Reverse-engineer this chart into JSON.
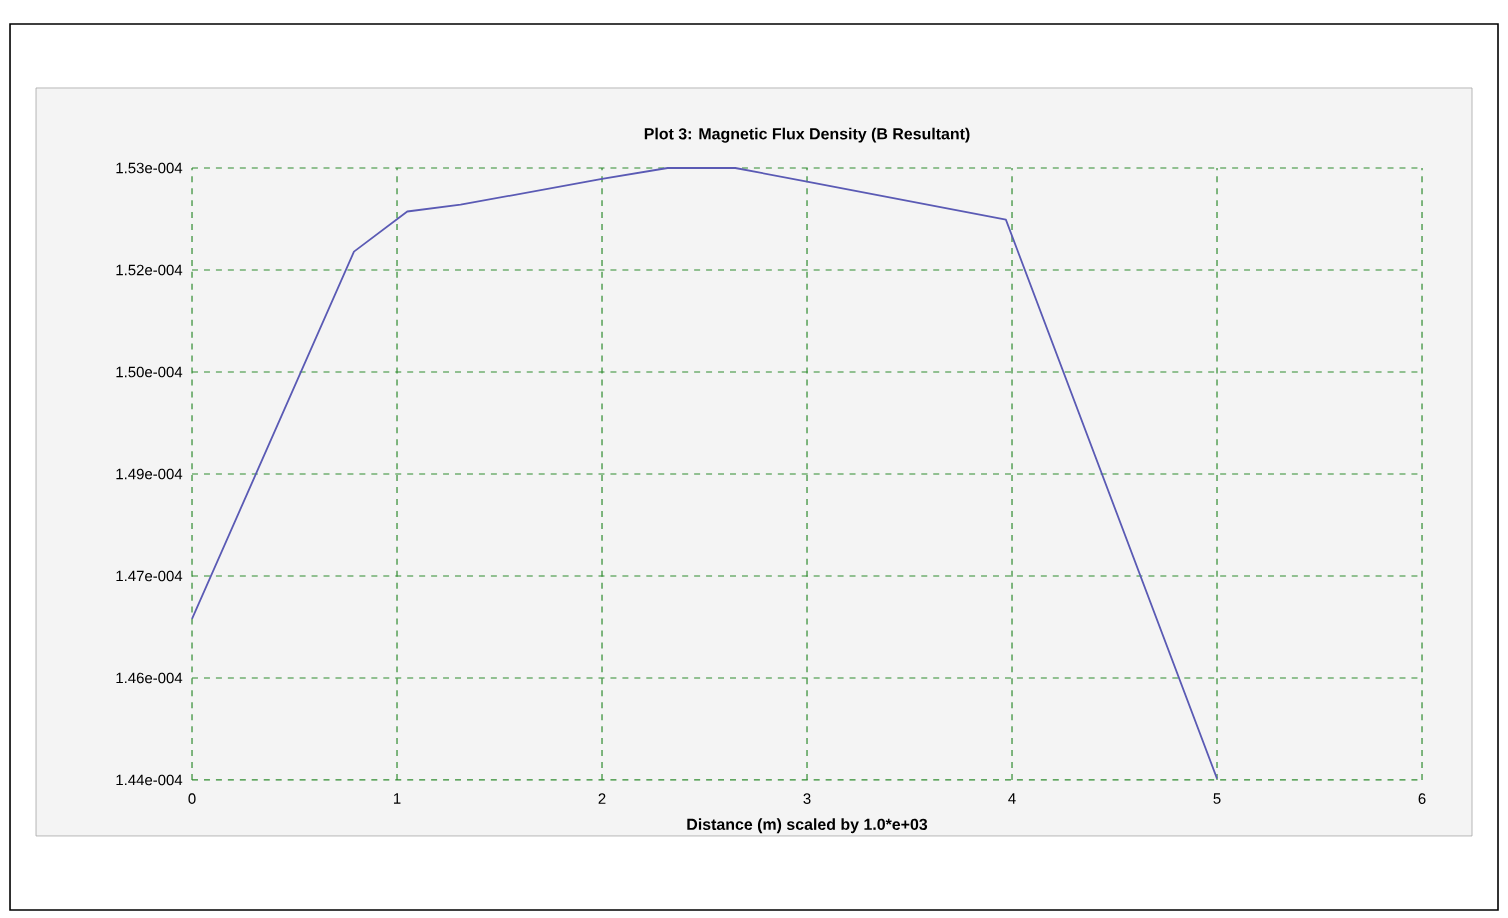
{
  "chart_data": {
    "type": "line",
    "title": "Plot 3:  Magnetic Flux Density (B Resultant)",
    "xlabel": "Distance (m) scaled by 1.0*e+03",
    "x": [
      0,
      0.79,
      1.05,
      1.31,
      2,
      2.32,
      2.65,
      3,
      3.97,
      5
    ],
    "series": [
      {
        "color": "#5a5ab4",
        "values": [
          0.00014637,
          0.00015177,
          0.00015236,
          0.00015246,
          0.00015284,
          0.000153,
          0.000153,
          0.0001528,
          0.00015224,
          0.00014402
        ]
      }
    ],
    "xlim": [
      0,
      6
    ],
    "xticks": [
      0,
      1,
      2,
      3,
      4,
      5,
      6
    ],
    "ylim": [
      0.000144,
      0.000153
    ],
    "yticks": [
      {
        "value": 0.000144,
        "label": "1.44e-004"
      },
      {
        "value": 0.0001455,
        "label": "1.46e-004"
      },
      {
        "value": 0.000147,
        "label": "1.47e-004"
      },
      {
        "value": 0.0001485,
        "label": "1.49e-004"
      },
      {
        "value": 0.00015,
        "label": "1.50e-004"
      },
      {
        "value": 0.0001515,
        "label": "1.52e-004"
      },
      {
        "value": 0.000153,
        "label": "1.53e-004"
      }
    ],
    "grid": true
  }
}
